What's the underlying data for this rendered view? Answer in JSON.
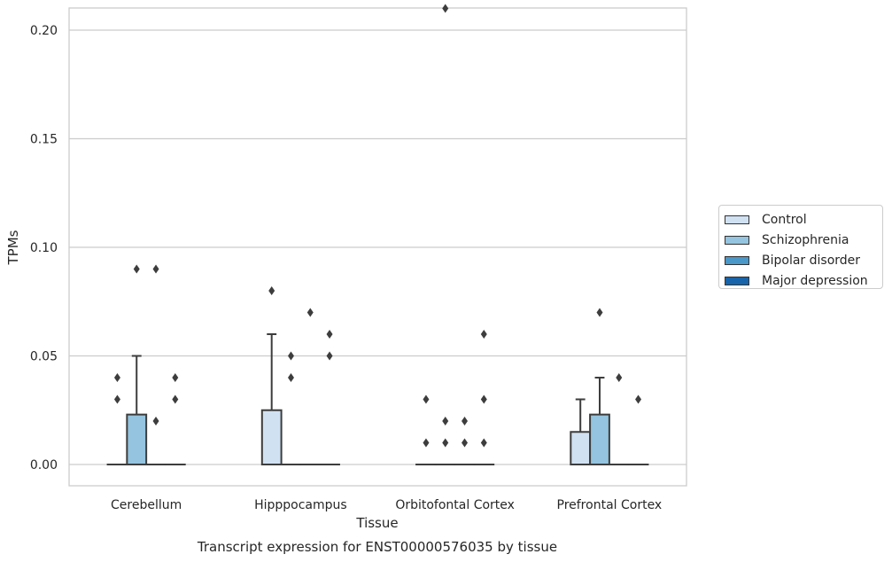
{
  "chart_data": {
    "type": "box",
    "title": "",
    "caption": "Transcript expression for ENST00000576035 by tissue",
    "xlabel": "Tissue",
    "ylabel": "TPMs",
    "ylim": [
      -0.01,
      0.22
    ],
    "yticks": [
      "0.00",
      "0.05",
      "0.10",
      "0.15",
      "0.20"
    ],
    "ytick_values": [
      0.0,
      0.05,
      0.1,
      0.15,
      0.2
    ],
    "grid": "horizontal",
    "legend_position": "right",
    "categories": [
      "Cerebellum",
      "Hipppocampus",
      "Orbitofontal Cortex",
      "Prefrontal Cortex"
    ],
    "series": [
      {
        "name": "Control",
        "color": "#d0e1f2",
        "boxes": [
          {
            "q1": 0,
            "median": 0,
            "q3": 0,
            "whisker_low": 0,
            "whisker_high": 0,
            "outliers": [
              0.04,
              0.03
            ]
          },
          {
            "q1": 0,
            "median": 0,
            "q3": 0.025,
            "whisker_low": 0,
            "whisker_high": 0.06,
            "outliers": [
              0.08
            ]
          },
          {
            "q1": 0,
            "median": 0,
            "q3": 0,
            "whisker_low": 0,
            "whisker_high": 0,
            "outliers": [
              0.03,
              0.01
            ]
          },
          {
            "q1": 0,
            "median": 0,
            "q3": 0.015,
            "whisker_low": 0,
            "whisker_high": 0.03,
            "outliers": []
          }
        ]
      },
      {
        "name": "Schizophrenia",
        "color": "#94c4df",
        "boxes": [
          {
            "q1": 0,
            "median": 0,
            "q3": 0.023,
            "whisker_low": 0,
            "whisker_high": 0.05,
            "outliers": [
              0.09
            ]
          },
          {
            "q1": 0,
            "median": 0,
            "q3": 0,
            "whisker_low": 0,
            "whisker_high": 0,
            "outliers": [
              0.05,
              0.04
            ]
          },
          {
            "q1": 0,
            "median": 0,
            "q3": 0,
            "whisker_low": 0,
            "whisker_high": 0,
            "outliers": [
              0.02,
              0.01,
              0.21
            ]
          },
          {
            "q1": 0,
            "median": 0,
            "q3": 0.023,
            "whisker_low": 0,
            "whisker_high": 0.04,
            "outliers": [
              0.07
            ]
          }
        ]
      },
      {
        "name": "Bipolar disorder",
        "color": "#4a98c9",
        "boxes": [
          {
            "q1": 0,
            "median": 0,
            "q3": 0,
            "whisker_low": 0,
            "whisker_high": 0,
            "outliers": [
              0.09,
              0.02
            ]
          },
          {
            "q1": 0,
            "median": 0,
            "q3": 0,
            "whisker_low": 0,
            "whisker_high": 0,
            "outliers": [
              0.07
            ]
          },
          {
            "q1": 0,
            "median": 0,
            "q3": 0,
            "whisker_low": 0,
            "whisker_high": 0,
            "outliers": [
              0.02,
              0.01
            ]
          },
          {
            "q1": 0,
            "median": 0,
            "q3": 0,
            "whisker_low": 0,
            "whisker_high": 0,
            "outliers": [
              0.04
            ]
          }
        ]
      },
      {
        "name": "Major depression",
        "color": "#1764ab",
        "boxes": [
          {
            "q1": 0,
            "median": 0,
            "q3": 0,
            "whisker_low": 0,
            "whisker_high": 0,
            "outliers": [
              0.04,
              0.03
            ]
          },
          {
            "q1": 0,
            "median": 0,
            "q3": 0,
            "whisker_low": 0,
            "whisker_high": 0,
            "outliers": [
              0.06,
              0.05
            ]
          },
          {
            "q1": 0,
            "median": 0,
            "q3": 0,
            "whisker_low": 0,
            "whisker_high": 0,
            "outliers": [
              0.06,
              0.03,
              0.01
            ]
          },
          {
            "q1": 0,
            "median": 0,
            "q3": 0,
            "whisker_low": 0,
            "whisker_high": 0,
            "outliers": [
              0.03
            ]
          }
        ]
      }
    ]
  }
}
